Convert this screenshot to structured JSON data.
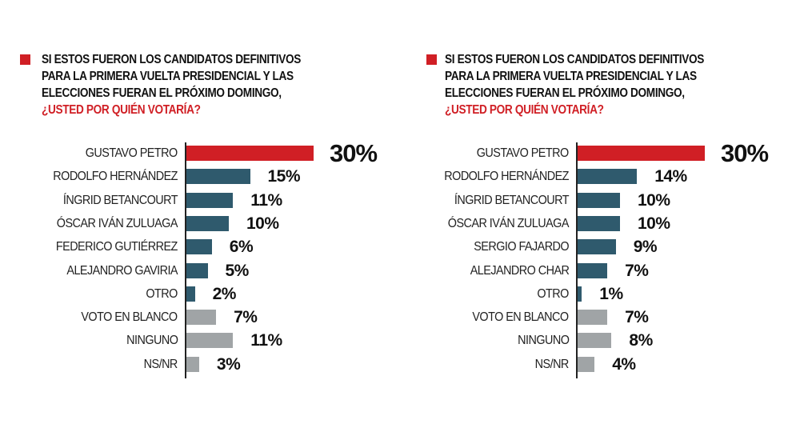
{
  "colors": {
    "leader": "#d01f25",
    "candidate": "#2f5a6d",
    "other": "#a0a4a6",
    "title_accent": "#d01f25"
  },
  "chart_data": [
    {
      "type": "bar",
      "orientation": "horizontal",
      "title_lines": [
        "SI ESTOS FUERON LOS CANDIDATOS DEFINITIVOS",
        "PARA LA PRIMERA VUELTA PRESIDENCIAL Y LAS",
        "ELECCIONES FUERAN EL PRÓXIMO DOMINGO,"
      ],
      "question": "¿USTED POR QUIÉN VOTARÍA?",
      "categories": [
        "GUSTAVO PETRO",
        "RODOLFO HERNÁNDEZ",
        "ÍNGRID BETANCOURT",
        "ÓSCAR IVÁN ZULUAGA",
        "FEDERICO GUTIÉRREZ",
        "ALEJANDRO GAVIRIA",
        "OTRO",
        "VOTO EN BLANCO",
        "NINGUNO",
        "NS/NR"
      ],
      "values": [
        30,
        15,
        11,
        10,
        6,
        5,
        2,
        7,
        11,
        3
      ],
      "labels": [
        "30%",
        "15%",
        "11%",
        "10%",
        "6%",
        "5%",
        "2%",
        "7%",
        "11%",
        "3%"
      ],
      "bar_colors": [
        "leader",
        "candidate",
        "candidate",
        "candidate",
        "candidate",
        "candidate",
        "candidate",
        "other",
        "other",
        "other"
      ],
      "unit": "%",
      "grid": false
    },
    {
      "type": "bar",
      "orientation": "horizontal",
      "title_lines": [
        "SI ESTOS FUERON LOS CANDIDATOS DEFINITIVOS",
        "PARA LA PRIMERA VUELTA PRESIDENCIAL Y LAS",
        "ELECCIONES FUERAN EL PRÓXIMO DOMINGO,"
      ],
      "question": "¿USTED POR QUIÉN VOTARÍA?",
      "categories": [
        "GUSTAVO PETRO",
        "RODOLFO HERNÁNDEZ",
        "ÍNGRID BETANCOURT",
        "ÓSCAR IVÁN ZULUAGA",
        "SERGIO FAJARDO",
        "ALEJANDRO CHAR",
        "OTRO",
        "VOTO EN BLANCO",
        "NINGUNO",
        "NS/NR"
      ],
      "values": [
        30,
        14,
        10,
        10,
        9,
        7,
        1,
        7,
        8,
        4
      ],
      "labels": [
        "30%",
        "14%",
        "10%",
        "10%",
        "9%",
        "7%",
        "1%",
        "7%",
        "8%",
        "4%"
      ],
      "bar_colors": [
        "leader",
        "candidate",
        "candidate",
        "candidate",
        "candidate",
        "candidate",
        "candidate",
        "other",
        "other",
        "other"
      ],
      "unit": "%",
      "grid": false
    }
  ]
}
